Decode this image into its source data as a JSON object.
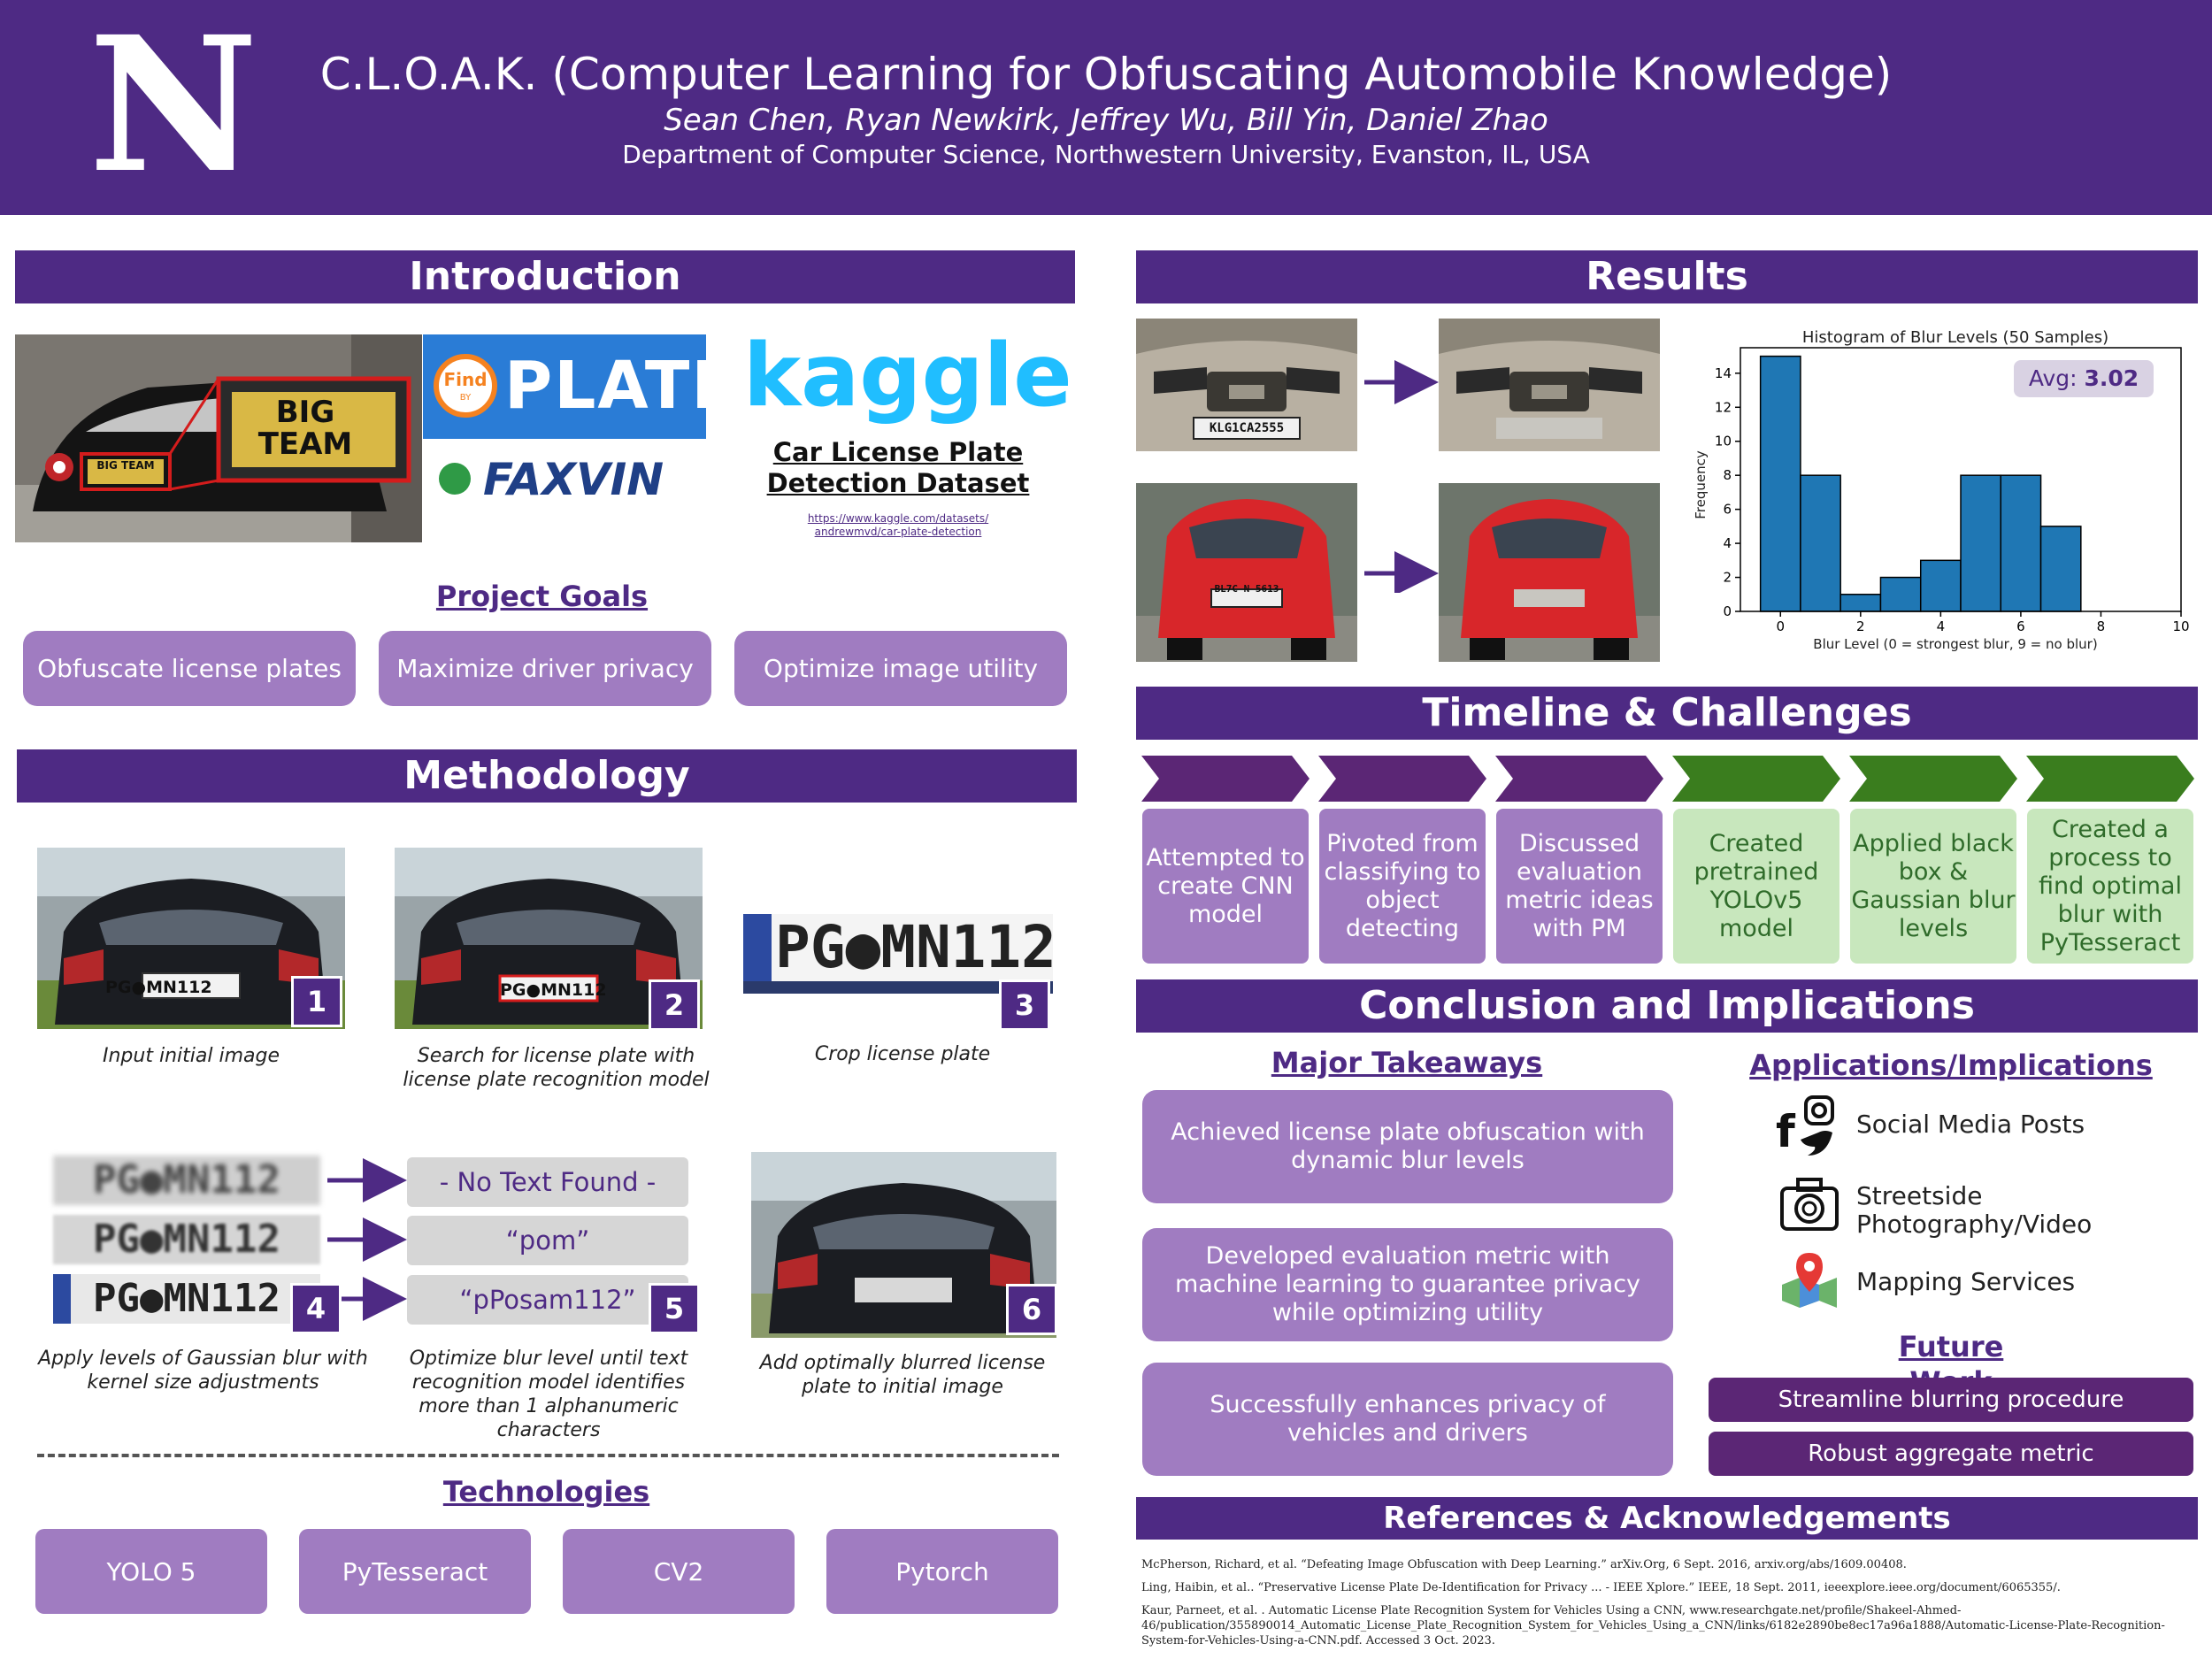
{
  "header": {
    "logo_letter": "N",
    "title": "C.L.O.A.K. (Computer Learning for Obfuscating Automobile Knowledge)",
    "authors": "Sean Chen, Ryan Newkirk, Jeffrey Wu, Bill Yin, Daniel Zhao",
    "affiliation": "Department of Computer Science, Northwestern University, Evanston, IL, USA"
  },
  "introduction": {
    "heading": "Introduction",
    "plate_text": "BIG TEAM",
    "findplate_find": "Find",
    "findplate_by": "BY",
    "findplate_plate": "PLATE",
    "faxvin": "FAXVIN",
    "kaggle_logo": "kaggle",
    "dataset_title_1": "Car License Plate",
    "dataset_title_2": "Detection Dataset",
    "dataset_url_1": "https://www.kaggle.com/datasets/",
    "dataset_url_2": "andrewmvd/car-plate-detection",
    "goals_heading": "Project Goals",
    "goals": [
      "Obfuscate license plates",
      "Maximize driver privacy",
      "Optimize image utility"
    ]
  },
  "methodology": {
    "heading": "Methodology",
    "plate": "PG●MN112",
    "plate_crop": "PG●MN112",
    "steps": [
      {
        "num": "1",
        "caption": "Input initial image"
      },
      {
        "num": "2",
        "caption": "Search for license plate with license plate recognition model"
      },
      {
        "num": "3",
        "caption": "Crop license plate"
      },
      {
        "num": "4",
        "caption": "Apply levels of Gaussian blur with kernel size adjustments"
      },
      {
        "num": "5",
        "caption": "Optimize blur level until text recognition model identifies more than 1 alphanumeric characters"
      },
      {
        "num": "6",
        "caption": "Add optimally blurred license plate to initial image"
      }
    ],
    "ocr_results": [
      "- No Text Found -",
      "“pom”",
      "“pPosam112”"
    ],
    "tech_heading": "Technologies",
    "technologies": [
      "YOLO 5",
      "PyTesseract",
      "CV2",
      "Pytorch"
    ]
  },
  "results": {
    "heading": "Results",
    "plate_top": "KLG1CA2555",
    "plate_bottom": "BL7C N 5613"
  },
  "chart_data": {
    "type": "bar",
    "title": "Histogram of Blur Levels (50 Samples)",
    "xlabel": "Blur Level (0 = strongest blur, 9 = no blur)",
    "ylabel": "Frequency",
    "bins": [
      [
        -0.5,
        0.5
      ],
      [
        0.5,
        1.5
      ],
      [
        1.5,
        2.5
      ],
      [
        2.5,
        3.5
      ],
      [
        3.5,
        4.5
      ],
      [
        4.5,
        5.5
      ],
      [
        5.5,
        6.5
      ],
      [
        6.5,
        7.5
      ]
    ],
    "values": [
      15,
      8,
      1,
      2,
      3,
      8,
      8,
      5
    ],
    "xlim": [
      -1,
      10
    ],
    "ylim": [
      0,
      15.5
    ],
    "xticks": [
      0,
      2,
      4,
      6,
      8,
      10
    ],
    "yticks": [
      0,
      2,
      4,
      6,
      8,
      10,
      12,
      14
    ],
    "annotation_label": "Avg:",
    "annotation_value": "3.02",
    "bar_color": "#1f77b4"
  },
  "timeline": {
    "heading": "Timeline & Challenges",
    "items": [
      {
        "text": "Attempted to create CNN model",
        "status": "purple"
      },
      {
        "text": "Pivoted from classifying to object detecting",
        "status": "purple"
      },
      {
        "text": "Discussed evaluation metric ideas with PM",
        "status": "purple"
      },
      {
        "text": "Created pretrained YOLOv5 model",
        "status": "green"
      },
      {
        "text": "Applied black box & Gaussian blur levels",
        "status": "green"
      },
      {
        "text": "Created a process to find optimal blur with PyTesseract",
        "status": "green"
      }
    ],
    "purple_color": "#5b2675",
    "green_color": "#3a7d1e"
  },
  "conclusion": {
    "heading": "Conclusion and Implications",
    "takeaways_heading": "Major Takeaways",
    "takeaways": [
      "Achieved license plate obfuscation with dynamic blur levels",
      "Developed evaluation metric with machine learning to guarantee privacy while optimizing utility",
      "Successfully enhances privacy of vehicles and drivers"
    ],
    "apps_heading": "Applications/Implications",
    "apps": [
      {
        "icon": "social-media-icon",
        "label": "Social Media Posts"
      },
      {
        "icon": "camera-icon",
        "label": "Streetside Photography/Video"
      },
      {
        "icon": "map-pin-icon",
        "label": "Mapping Services"
      }
    ],
    "future_heading": "Future Work",
    "future": [
      "Streamline blurring procedure",
      "Robust aggregate metric"
    ]
  },
  "references": {
    "heading": "References & Acknowledgements",
    "items": [
      "McPherson, Richard, et al. “Defeating Image Obfuscation with Deep Learning.” arXiv.Org, 6 Sept. 2016, arxiv.org/abs/1609.00408.",
      "Ling, Haibin, et al.. “Preservative License Plate De-Identification for Privacy ... - IEEE Xplore.” IEEE, 18 Sept. 2011, ieeexplore.ieee.org/document/6065355/.",
      "Kaur, Parneet, et al. . Automatic License Plate Recognition System for Vehicles Using a CNN, www.researchgate.net/profile/Shakeel-Ahmed-46/publication/355890014_Automatic_License_Plate_Recognition_System_for_Vehicles_Using_a_CNN/links/6182e2890be8ec17a96a1888/Automatic-License-Plate-Recognition-System-for-Vehicles-Using-a-CNN.pdf. Accessed 3 Oct. 2023."
    ]
  }
}
